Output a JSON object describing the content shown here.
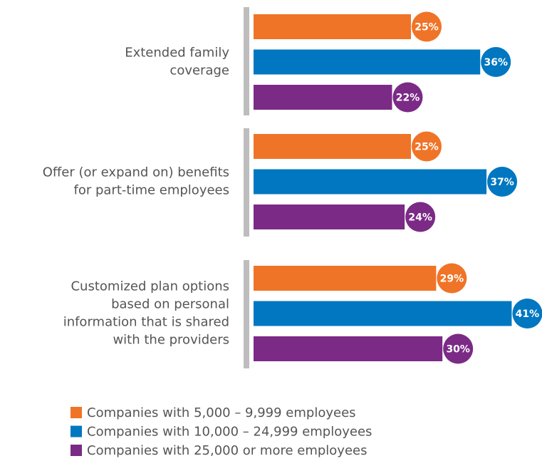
{
  "chart_data": {
    "type": "bar",
    "orientation": "horizontal",
    "categories": [
      [
        "Extended family",
        "coverage"
      ],
      [
        "Offer (or expand on) benefits",
        "for part-time employees"
      ],
      [
        "Customized plan options",
        "based on personal",
        "information that is shared",
        "with the providers"
      ]
    ],
    "series": [
      {
        "name": "Companies with 5,000 – 9,999 employees",
        "color": "#f07427",
        "values": [
          25,
          25,
          29
        ],
        "value_labels": [
          "25%",
          "25%",
          "29%"
        ]
      },
      {
        "name": "Companies with 10,000 – 24,999 employees",
        "color": "#0077c0",
        "values": [
          36,
          37,
          41
        ],
        "value_labels": [
          "36%",
          "37%",
          "41%"
        ]
      },
      {
        "name": "Companies with 25,000 or more employees",
        "color": "#7b2a86",
        "values": [
          22,
          24,
          30
        ],
        "value_labels": [
          "22%",
          "24%",
          "30%"
        ]
      }
    ]
  }
}
